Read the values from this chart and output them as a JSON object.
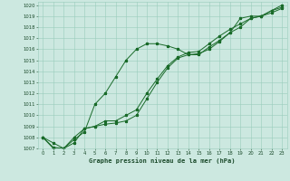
{
  "title": "Graphe pression niveau de la mer (hPa)",
  "background_color": "#cce8e0",
  "grid_color": "#99ccbb",
  "line_color": "#1a6b2a",
  "marker_color": "#1a6b2a",
  "text_color": "#1a4a2a",
  "xlim": [
    -0.5,
    23.5
  ],
  "ylim": [
    1007,
    1020.3
  ],
  "xticks": [
    0,
    1,
    2,
    3,
    4,
    5,
    6,
    7,
    8,
    9,
    10,
    11,
    12,
    13,
    14,
    15,
    16,
    17,
    18,
    19,
    20,
    21,
    22,
    23
  ],
  "yticks": [
    1007,
    1008,
    1009,
    1010,
    1011,
    1012,
    1013,
    1014,
    1015,
    1016,
    1017,
    1018,
    1019,
    1020
  ],
  "line1_x": [
    0,
    1,
    2,
    3,
    4,
    5,
    6,
    7,
    8,
    9,
    10,
    11,
    12,
    13,
    14,
    15,
    16,
    17,
    18,
    19,
    20,
    21,
    22,
    23
  ],
  "line1_y": [
    1008.0,
    1007.1,
    1007.0,
    1007.8,
    1008.5,
    1011.0,
    1012.0,
    1013.5,
    1015.0,
    1016.0,
    1016.5,
    1016.5,
    1016.3,
    1016.0,
    1015.5,
    1015.5,
    1016.2,
    1016.8,
    1017.5,
    1018.8,
    1019.0,
    1019.0,
    1019.5,
    1019.8
  ],
  "line2_x": [
    0,
    1,
    2,
    3,
    4,
    5,
    6,
    7,
    8,
    9,
    10,
    11,
    12,
    13,
    14,
    15,
    16,
    17,
    18,
    19,
    20,
    21,
    22,
    23
  ],
  "line2_y": [
    1008.0,
    1007.5,
    1007.0,
    1008.0,
    1008.8,
    1009.0,
    1009.2,
    1009.3,
    1009.5,
    1010.0,
    1011.5,
    1013.0,
    1014.3,
    1015.2,
    1015.5,
    1015.6,
    1016.0,
    1016.7,
    1017.5,
    1018.0,
    1018.8,
    1019.0,
    1019.3,
    1019.7
  ],
  "line3_x": [
    0,
    1,
    2,
    3,
    4,
    5,
    6,
    7,
    8,
    9,
    10,
    11,
    12,
    13,
    14,
    15,
    16,
    17,
    18,
    19,
    20,
    21,
    22,
    23
  ],
  "line3_y": [
    1008.0,
    1007.0,
    1007.0,
    1007.5,
    1008.8,
    1009.0,
    1009.5,
    1009.5,
    1010.0,
    1010.5,
    1012.0,
    1013.3,
    1014.5,
    1015.3,
    1015.7,
    1015.8,
    1016.5,
    1017.2,
    1017.8,
    1018.3,
    1018.8,
    1019.0,
    1019.5,
    1020.0
  ]
}
